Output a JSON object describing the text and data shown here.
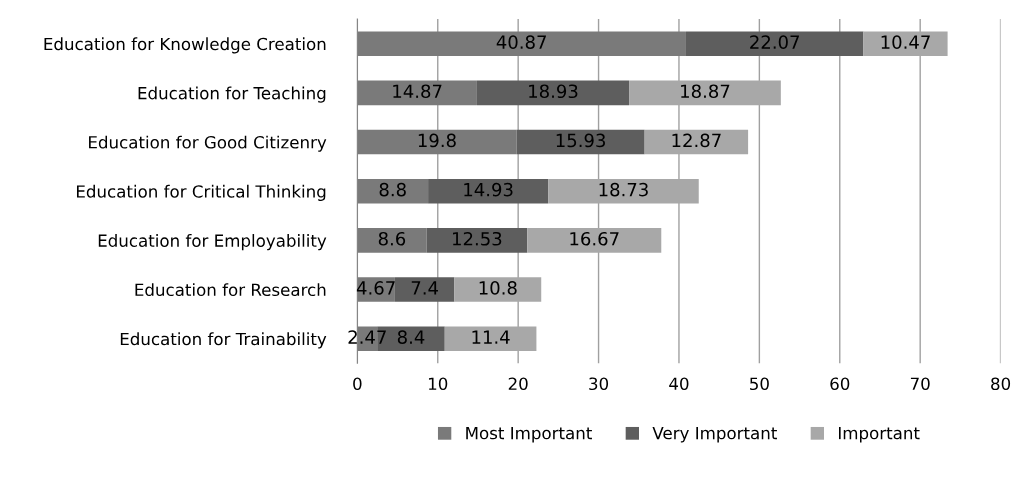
{
  "chart_data": {
    "type": "bar",
    "orientation": "horizontal",
    "stacked": true,
    "categories": [
      "Education for Knowledge Creation",
      "Education for Teaching",
      "Education for Good Citizenry",
      "Education for Critical Thinking",
      "Education for Employability",
      "Education for Research",
      "Education for Trainability"
    ],
    "series": [
      {
        "name": "Most Important",
        "color": "#7a7a7a",
        "values": [
          40.87,
          14.87,
          19.8,
          8.8,
          8.6,
          4.67,
          2.47
        ]
      },
      {
        "name": "Very Important",
        "color": "#5e5e5e",
        "values": [
          22.07,
          18.93,
          15.93,
          14.93,
          12.53,
          7.4,
          8.4
        ]
      },
      {
        "name": "Important",
        "color": "#a8a8a8",
        "values": [
          10.47,
          18.87,
          12.87,
          18.73,
          16.67,
          10.8,
          11.4
        ]
      }
    ],
    "xlim": [
      0,
      80
    ],
    "xticks": [
      0,
      10,
      20,
      30,
      40,
      50,
      60,
      70,
      80
    ],
    "grid": "x",
    "legend": "bottom",
    "data_labels": true
  }
}
